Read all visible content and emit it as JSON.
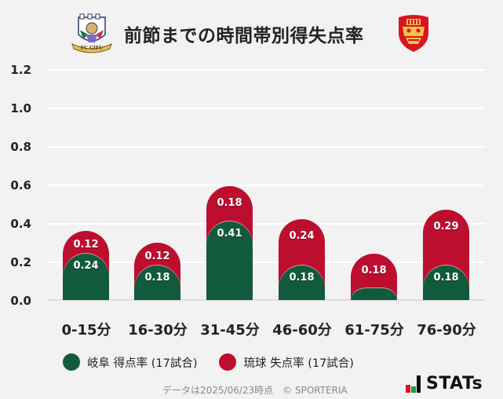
{
  "header": {
    "title": "前節までの時間帯別得失点率",
    "home_logo": "fc-gifu-crest",
    "away_logo": "fc-ryukyu-crest"
  },
  "colors": {
    "home": "#125a3e",
    "away": "#bd0e2f",
    "background": "#f2f2f2",
    "grid": "#ffffff",
    "baseline": "#dcdcdc"
  },
  "chart_data": {
    "type": "bar",
    "stacked": true,
    "title": "前節までの時間帯別得失点率",
    "xlabel": "",
    "ylabel": "",
    "ylim": [
      0,
      1.2
    ],
    "yticks": [
      "1.2",
      "1.0",
      "0.8",
      "0.6",
      "0.4",
      "0.2",
      "0.0"
    ],
    "grid": true,
    "legend_position": "bottom",
    "categories": [
      "0-15分",
      "16-30分",
      "31-45分",
      "46-60分",
      "61-75分",
      "76-90分"
    ],
    "series": [
      {
        "name": "岐阜 得点率 (17試合)",
        "color": "#125a3e",
        "values": [
          0.24,
          0.18,
          0.41,
          0.18,
          0.06,
          0.18
        ],
        "labels": [
          "0.24",
          "0.18",
          "0.41",
          "0.18",
          "",
          "0.18"
        ]
      },
      {
        "name": "琉球 失点率 (17試合)",
        "color": "#bd0e2f",
        "values": [
          0.12,
          0.12,
          0.18,
          0.24,
          0.18,
          0.29
        ],
        "labels": [
          "0.12",
          "0.12",
          "0.18",
          "0.24",
          "0.18",
          "0.29"
        ]
      }
    ]
  },
  "legend": {
    "items": [
      {
        "label": "岐阜 得点率 (17試合)",
        "color": "#125a3e"
      },
      {
        "label": "琉球 失点率 (17試合)",
        "color": "#bd0e2f"
      }
    ]
  },
  "footer": {
    "note": "データは2025/06/23時点　© SPORTERIA",
    "brand": "STATs"
  }
}
